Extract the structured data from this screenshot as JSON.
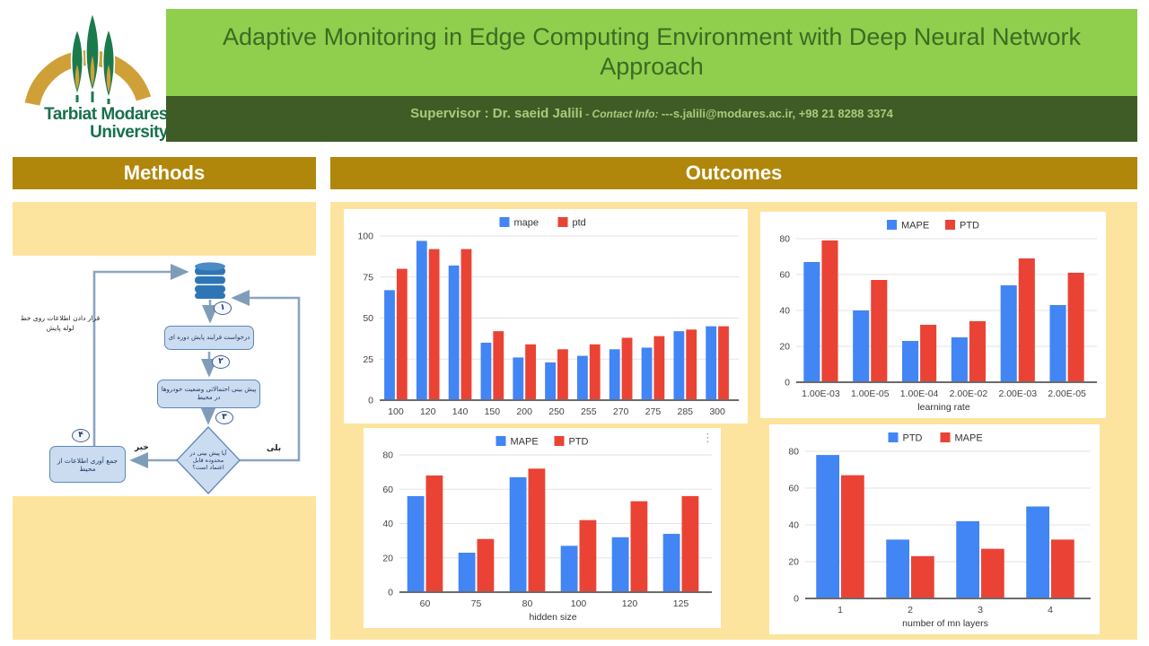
{
  "header": {
    "title_line1": "Adaptive Monitoring in Edge Computing Environment with Deep Neural Network",
    "title_line2": "Approach",
    "supervisor": "Supervisor : Dr. saeid Jalili",
    "contact_label": " - Contact Info: ",
    "contact_value": "---s.jalili@modares.ac.ir, +98 21 8288 3374",
    "university_line1": "Tarbiat Modares",
    "university_line2": "University"
  },
  "sections": {
    "methods": "Methods",
    "outcomes": "Outcomes"
  },
  "flowchart": {
    "db_icon": "database-icon",
    "badge1": "۱",
    "badge2": "۲",
    "badge3": "۳",
    "badge4": "۴",
    "step1": "درخواست فرایند پایش دوره ای",
    "step2": "پیش بینی احتمالاتی وضعیت خودروها در محیط",
    "decision": "آیا پیش بینی در محدوده قابل اعتماد است؟",
    "step4": "جمع آوری اطلاعات از محیط",
    "no_label": "خیر",
    "yes_label": "بلی",
    "side_note": "قرار دادن اطلاعات روی خط لوله پایش"
  },
  "colors": {
    "gold": "#B1870B",
    "yellow": "#FDE49E",
    "light_green": "#90CF4E",
    "title_green": "#3C6B22",
    "dark_green": "#3F5C26",
    "supervisor_text": "#A9CB7B",
    "logo_green": "#17704A",
    "logo_gold": "#D0A038",
    "chart_blue": "#4285F4",
    "chart_red": "#EA4335"
  },
  "chart_menu_glyph": "⋮",
  "chart_data": [
    {
      "type": "bar",
      "categories": [
        "100",
        "120",
        "140",
        "150",
        "200",
        "250",
        "255",
        "270",
        "275",
        "285",
        "300"
      ],
      "series": [
        {
          "name": "mape",
          "color": "#4285F4",
          "values": [
            67,
            97,
            82,
            35,
            26,
            23,
            27,
            31,
            32,
            42,
            45
          ]
        },
        {
          "name": "ptd",
          "color": "#EA4335",
          "values": [
            80,
            92,
            92,
            42,
            34,
            31,
            34,
            38,
            39,
            43,
            45
          ]
        }
      ],
      "xlabel": "",
      "ylabel": "",
      "ylim": [
        0,
        100
      ],
      "yticks": [
        0,
        25,
        50,
        75,
        100
      ],
      "grid": true,
      "legend_position": "top"
    },
    {
      "type": "bar",
      "categories": [
        "1.00E-03",
        "1.00E-05",
        "1.00E-04",
        "2.00E-02",
        "2.00E-03",
        "2.00E-05"
      ],
      "series": [
        {
          "name": "MAPE",
          "color": "#4285F4",
          "values": [
            67,
            40,
            23,
            25,
            54,
            43
          ]
        },
        {
          "name": "PTD",
          "color": "#EA4335",
          "values": [
            79,
            57,
            32,
            34,
            69,
            61
          ]
        }
      ],
      "xlabel": "learning rate",
      "ylabel": "",
      "ylim": [
        0,
        80
      ],
      "yticks": [
        0,
        20,
        40,
        60,
        80
      ],
      "grid": true,
      "legend_position": "top"
    },
    {
      "type": "bar",
      "categories": [
        "60",
        "75",
        "80",
        "100",
        "120",
        "125"
      ],
      "series": [
        {
          "name": "MAPE",
          "color": "#4285F4",
          "values": [
            56,
            23,
            67,
            27,
            32,
            34
          ]
        },
        {
          "name": "PTD",
          "color": "#EA4335",
          "values": [
            68,
            31,
            72,
            42,
            53,
            56
          ]
        }
      ],
      "xlabel": "hidden size",
      "ylabel": "",
      "ylim": [
        0,
        80
      ],
      "yticks": [
        0,
        20,
        40,
        60,
        80
      ],
      "grid": true,
      "legend_position": "top"
    },
    {
      "type": "bar",
      "categories": [
        "1",
        "2",
        "3",
        "4"
      ],
      "series": [
        {
          "name": "PTD",
          "color": "#4285F4",
          "values": [
            78,
            32,
            42,
            50
          ]
        },
        {
          "name": "MAPE",
          "color": "#EA4335",
          "values": [
            67,
            23,
            27,
            32
          ]
        }
      ],
      "xlabel": "number of mn layers",
      "ylabel": "",
      "ylim": [
        0,
        80
      ],
      "yticks": [
        0,
        20,
        40,
        60,
        80
      ],
      "grid": true,
      "legend_position": "top"
    }
  ]
}
